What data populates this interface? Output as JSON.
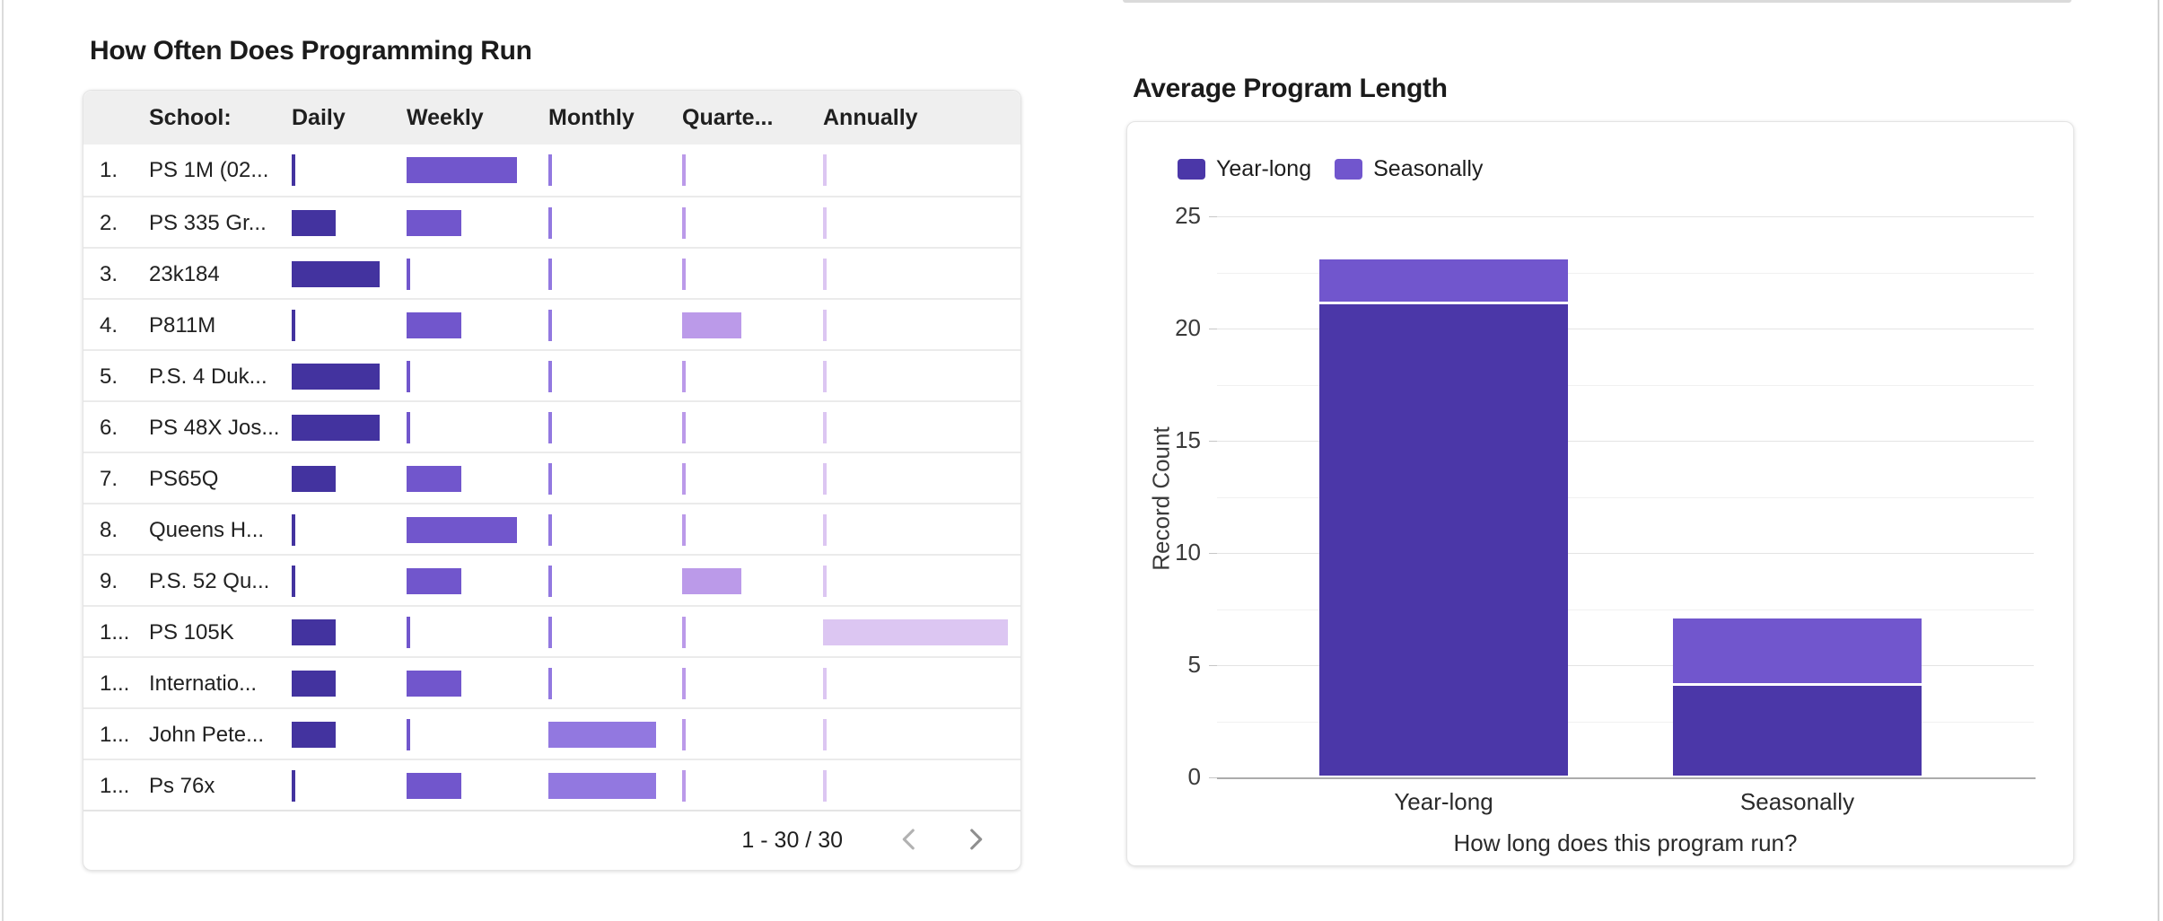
{
  "left_panel": {
    "title": "How Often Does Programming Run",
    "columns": [
      "School:",
      "Daily",
      "Weekly",
      "Monthly",
      "Quarte...",
      "Annually"
    ],
    "column_keys": [
      "school",
      "daily",
      "weekly",
      "monthly",
      "quarterly",
      "annually"
    ],
    "column_colors": {
      "daily": "#43339F",
      "weekly": "#7156CC",
      "monthly": "#9278E0",
      "quarterly": "#BB9AE9",
      "annually": "#DCC6F2"
    },
    "rows": [
      {
        "num": "1.",
        "school": "PS 1M (02...",
        "bars": {
          "daily": 0,
          "weekly": 123,
          "monthly": 0,
          "quarterly": 0,
          "annually": 0
        }
      },
      {
        "num": "2.",
        "school": "PS 335 Gr...",
        "bars": {
          "daily": 49,
          "weekly": 61,
          "monthly": 0,
          "quarterly": 0,
          "annually": 0
        }
      },
      {
        "num": "3.",
        "school": "23k184",
        "bars": {
          "daily": 98,
          "weekly": 0,
          "monthly": 0,
          "quarterly": 0,
          "annually": 0
        }
      },
      {
        "num": "4.",
        "school": "P811M",
        "bars": {
          "daily": 0,
          "weekly": 61,
          "monthly": 0,
          "quarterly": 66,
          "annually": 0
        }
      },
      {
        "num": "5.",
        "school": "P.S. 4 Duk...",
        "bars": {
          "daily": 98,
          "weekly": 0,
          "monthly": 0,
          "quarterly": 0,
          "annually": 0
        }
      },
      {
        "num": "6.",
        "school": "PS 48X Jos...",
        "bars": {
          "daily": 98,
          "weekly": 0,
          "monthly": 0,
          "quarterly": 0,
          "annually": 0
        }
      },
      {
        "num": "7.",
        "school": "PS65Q",
        "bars": {
          "daily": 49,
          "weekly": 61,
          "monthly": 0,
          "quarterly": 0,
          "annually": 0
        }
      },
      {
        "num": "8.",
        "school": "Queens H...",
        "bars": {
          "daily": 0,
          "weekly": 123,
          "monthly": 0,
          "quarterly": 0,
          "annually": 0
        }
      },
      {
        "num": "9.",
        "school": "P.S. 52 Qu...",
        "bars": {
          "daily": 0,
          "weekly": 61,
          "monthly": 0,
          "quarterly": 66,
          "annually": 0
        }
      },
      {
        "num": "1...",
        "school": "PS 105K",
        "bars": {
          "daily": 49,
          "weekly": 0,
          "monthly": 0,
          "quarterly": 0,
          "annually": 206
        }
      },
      {
        "num": "1...",
        "school": "Internatio...",
        "bars": {
          "daily": 49,
          "weekly": 61,
          "monthly": 0,
          "quarterly": 0,
          "annually": 0
        }
      },
      {
        "num": "1...",
        "school": "John Pete...",
        "bars": {
          "daily": 49,
          "weekly": 0,
          "monthly": 120,
          "quarterly": 0,
          "annually": 0
        }
      },
      {
        "num": "1...",
        "school": "Ps 76x",
        "bars": {
          "daily": 0,
          "weekly": 61,
          "monthly": 120,
          "quarterly": 0,
          "annually": 0
        }
      }
    ],
    "pagination": {
      "label": "1 - 30 / 30",
      "prev_icon": "chevron-left",
      "next_icon": "chevron-right"
    }
  },
  "right_panel": {
    "title": "Average Program Length"
  },
  "chart_data": {
    "type": "bar",
    "stacked": true,
    "title": "Average Program Length",
    "categories": [
      "Year-long",
      "Seasonally"
    ],
    "series": [
      {
        "name": "Year-long",
        "color": "#4B37A8",
        "values": [
          21,
          4
        ]
      },
      {
        "name": "Seasonally",
        "color": "#7156CD",
        "values": [
          2,
          3
        ]
      }
    ],
    "totals": [
      23,
      7
    ],
    "xlabel": "How long does this program run?",
    "ylabel": "Record Count",
    "ylim": [
      0,
      25
    ],
    "yticks": [
      0,
      5,
      10,
      15,
      20,
      25
    ],
    "y_minor_step": 2.5,
    "grid": true,
    "legend_position": "top-left"
  }
}
